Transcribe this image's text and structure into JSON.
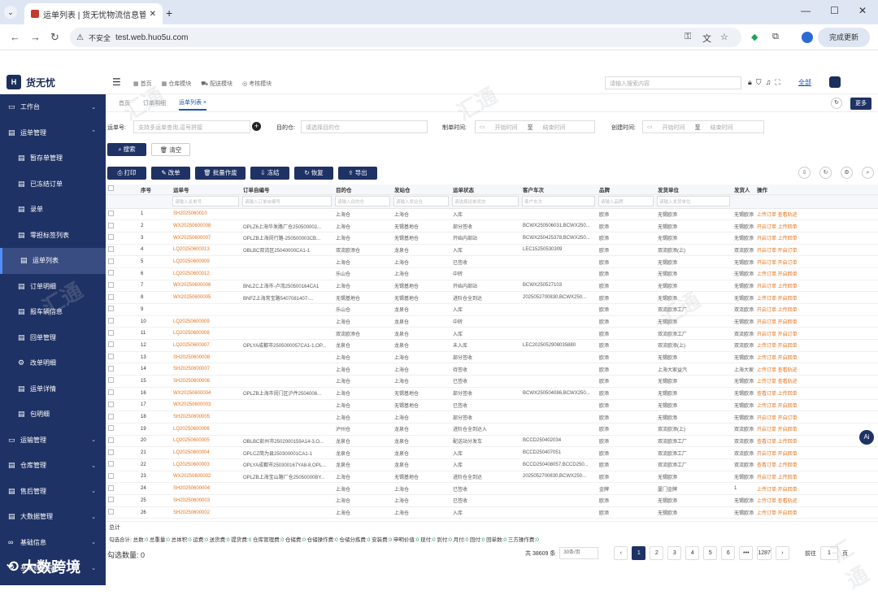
{
  "browser": {
    "tab_title": "运单列表 | 货无忧物流信息管理系统",
    "new_tab": "+",
    "security": "不安全",
    "url": "test.web.huo5u.com",
    "update_label": "完成更新"
  },
  "app": {
    "brand": "货无忧",
    "top_menu": [
      "首页",
      "仓库模块",
      "配送模块",
      "考核模块"
    ],
    "search_placeholder": "请输入搜索内容",
    "all_label": "全部"
  },
  "sidebar": {
    "items": [
      {
        "label": "工作台",
        "type": "group",
        "icon": "monitor-icon"
      },
      {
        "label": "运单管理",
        "type": "group",
        "icon": "doc-icon"
      },
      {
        "label": "暂存单管理",
        "type": "sub",
        "icon": "doc-icon"
      },
      {
        "label": "已冻结订单",
        "type": "sub",
        "icon": "doc-icon"
      },
      {
        "label": "录单",
        "type": "sub",
        "icon": "doc-icon"
      },
      {
        "label": "零担标签列表",
        "type": "sub",
        "icon": "doc-icon"
      },
      {
        "label": "运单列表",
        "type": "sub",
        "icon": "doc-icon",
        "active": true
      },
      {
        "label": "订单明细",
        "type": "sub",
        "icon": "doc-icon"
      },
      {
        "label": "报车辆信息",
        "type": "sub",
        "icon": "doc-icon"
      },
      {
        "label": "回单管理",
        "type": "sub",
        "icon": "doc-icon"
      },
      {
        "label": "改单明细",
        "type": "sub",
        "icon": "gear-icon"
      },
      {
        "label": "运单详情",
        "type": "sub",
        "icon": "doc-icon"
      },
      {
        "label": "包明细",
        "type": "sub",
        "icon": "doc-icon"
      },
      {
        "label": "运输管理",
        "type": "group",
        "icon": "monitor-icon"
      },
      {
        "label": "仓库管理",
        "type": "group",
        "icon": "doc-icon"
      },
      {
        "label": "售后管理",
        "type": "group",
        "icon": "doc-icon"
      },
      {
        "label": "大数据管理",
        "type": "group",
        "icon": "doc-icon"
      },
      {
        "label": "基础信息",
        "type": "group",
        "icon": "glasses-icon"
      },
      {
        "label": "基础数据信息",
        "type": "group",
        "icon": "gear-icon"
      }
    ],
    "footer_brand": "大数跨境"
  },
  "page_tabs": [
    "首页",
    "订单明细",
    "运单列表"
  ],
  "refresh_icon": "↻",
  "more_label": "更多",
  "filters": {
    "waybill_label": "运单号:",
    "waybill_placeholder": "支持多运单查询,逗号拼接",
    "dest_label": "目的仓:",
    "dest_placeholder": "请选择目的仓",
    "create_label": "制单时间:",
    "start_placeholder": "开始时间",
    "to": "至",
    "end_placeholder": "结束时间",
    "created_label": "创建时间:"
  },
  "actions": {
    "search": "搜索",
    "clear": "清空",
    "print": "打印",
    "edit": "改单",
    "batch": "批量作废",
    "freeze": "冻结",
    "restore": "恢复",
    "export": "导出"
  },
  "table": {
    "headers": [
      "",
      "序号",
      "运单号",
      "订单自编号",
      "目的仓",
      "发站仓",
      "运单状态",
      "客户车次",
      "品牌",
      "发货单位",
      "发货人",
      "操作"
    ],
    "filters": [
      "",
      "",
      "请输入关单号",
      "请输入订单自编号",
      "请输入目的仓",
      "请输入发站仓",
      "请选择运单状态",
      "客户车次",
      "请输入品牌",
      "请输入发货单位",
      "",
      ""
    ],
    "rows": [
      [
        "1",
        "SH2025060010",
        "",
        "上海仓",
        "上海仓",
        "入库",
        "",
        "欧添",
        "无锡欧添",
        "无锡欧添",
        "上传订单  查看轨迹"
      ],
      [
        "2",
        "WX20250600008",
        "OPLZ6上海华发路厂仓250500002...",
        "上海仓",
        "无锡基地仓",
        "部分签收",
        "BCWX250506031,BCWX250...",
        "欧添",
        "无锡欧添",
        "无锡欧添",
        "开启订单  上传回单"
      ],
      [
        "3",
        "WX20250600007",
        "OPLZB上海闵行路-250500003CB...",
        "上海仓",
        "无锡基地仓",
        "开始内部站",
        "BCWX250425378,BCWX250...",
        "欧添",
        "无锡欧添",
        "无锡欧添",
        "开启订单  上传回单"
      ],
      [
        "4",
        "LQ20250600013",
        "OBLBC双流区25040000CA1-1",
        "双流欧添仓",
        "龙泉仓",
        "入库",
        "LEC15250530309",
        "欧添",
        "双流欧添(上)",
        "双流欧添",
        "开启订单  开启订单"
      ],
      [
        "5",
        "LQ20250600009",
        "",
        "上海仓",
        "上海仓",
        "已签收",
        "",
        "欧添",
        "无锡欧添",
        "无锡欧添",
        "开启订单  开启订单"
      ],
      [
        "6",
        "LQ20250600012",
        "",
        "乐山仓",
        "上海仓",
        "中转",
        "",
        "欧添",
        "无锡欧添",
        "无锡欧添",
        "上传订单  开启回单"
      ],
      [
        "7",
        "WX20250600006",
        "BNLZC上海市-卢湾250500164CA1",
        "上海仓",
        "无锡基地仓",
        "开始内部站",
        "BCWX250527103",
        "欧添",
        "无锡欧添",
        "无锡欧添",
        "开启订单  上传回单"
      ],
      [
        "8",
        "WX20250600005",
        "BNFZ上海常宝路5407081407-...",
        "无锡基地仓",
        "无锡基地仓",
        "进阶仓全到达",
        "2025052700830,BCWX250...",
        "欧添",
        "无锡欧添",
        "无锡欧添",
        "上传订单  开启回单"
      ],
      [
        "9",
        "",
        "",
        "乐山仓",
        "龙泉仓",
        "入库",
        "",
        "欧添",
        "双流欧添工厂",
        "双流欧添",
        "开启订单  上传回单"
      ],
      [
        "10",
        "LQ20250600009",
        "",
        "上海仓",
        "龙泉仓",
        "中转",
        "",
        "欧添",
        "无锡欧添",
        "无锡欧添",
        "开启订单  开启回单"
      ],
      [
        "11",
        "LQ20250600008",
        "",
        "双流欧添仓",
        "龙泉仓",
        "入库",
        "",
        "欧添",
        "双流欧添工厂",
        "双流欧添",
        "开启订单  开启订单"
      ],
      [
        "12",
        "LQ20250600007",
        "OPLYA成都市2505000057CA1-1,OP...",
        "龙泉仓",
        "龙泉仓",
        "未入库",
        "LEC2025052908035880",
        "欧添",
        "双流欧添(上)",
        "双流欧添",
        "上传订单  开启回单"
      ],
      [
        "13",
        "SH20250600008",
        "",
        "上海仓",
        "上海仓",
        "部分签收",
        "",
        "欧添",
        "无锡欧添",
        "无锡欧添",
        "上传订单  开启回单"
      ],
      [
        "14",
        "SH20250600007",
        "",
        "上海仓",
        "上海仓",
        "待签收",
        "",
        "欧添",
        "上海大家益汽",
        "上海大家益汽",
        "上传订单  查看轨迹"
      ],
      [
        "15",
        "SH20250600006",
        "",
        "上海仓",
        "上海仓",
        "已签收",
        "",
        "欧添",
        "无锡欧添",
        "无锡欧添",
        "上传订单  查看轨迹"
      ],
      [
        "16",
        "WX20250600004",
        "OPLZB上海市闵门区沪件2504006...",
        "上海仓",
        "无锡基地仓",
        "部分签收",
        "BCWX250504086,BCWX250...",
        "欧添",
        "无锡欧添",
        "无锡欧添",
        "查看订单  上传回单"
      ],
      [
        "17",
        "WX20250600003",
        "",
        "上海仓",
        "无锡基地仓",
        "已签收",
        "",
        "欧添",
        "无锡欧添",
        "无锡欧添",
        "上传订单  开启回单"
      ],
      [
        "18",
        "SH20250600005",
        "",
        "上海仓",
        "上海仓",
        "部分签收",
        "",
        "欧添",
        "无锡欧添",
        "无锡欧添",
        "开启订单  开启订单"
      ],
      [
        "19",
        "LQ20250600006",
        "",
        "泸州仓",
        "龙泉仓",
        "进阶仓全到达入",
        "",
        "欧添",
        "双流欧添(上)",
        "双流欧添",
        "开启订单  开启回单"
      ],
      [
        "20",
        "LQ20250600005",
        "OBLBC彭州市2502000159A14-3,O...",
        "龙泉仓",
        "龙泉仓",
        "配送站分发车",
        "BCCD250402034",
        "欧添",
        "双流欧添工厂",
        "双流欧添",
        "查看订单  上传回单"
      ],
      [
        "21",
        "LQ20250600004",
        "OPLCZ简为县250300001CA1-1",
        "龙泉仓",
        "龙泉仓",
        "入库",
        "BCCD250407051",
        "欧添",
        "双流欧添工厂",
        "双流欧添",
        "开启订单  开启回单"
      ],
      [
        "22",
        "LQ20250600003",
        "OPLYA成都市250300167YA8-8,OPL...",
        "龙泉仓",
        "龙泉仓",
        "入库",
        "BCCD250408057,BCCD250...",
        "欧添",
        "双流欧添工厂",
        "双流欧添",
        "查看订单  上传回单"
      ],
      [
        "23",
        "WX20250600002",
        "OPLZB上海宝山路厂仓25050000BY...",
        "上海仓",
        "无锡基地仓",
        "进阶仓全到达",
        "2025052700830,BCWX250...",
        "欧添",
        "无锡欧添",
        "无锡欧添",
        "开启订单  上传回单"
      ],
      [
        "24",
        "SH20250600004",
        "",
        "上海仓",
        "上海仓",
        "已签收",
        "",
        "金牌",
        "厦门金牌",
        "1",
        "上传订单  开启回单"
      ],
      [
        "25",
        "SH20250600003",
        "",
        "上海仓",
        "上海仓",
        "已签收",
        "",
        "欧添",
        "无锡欧添",
        "无锡欧添",
        "上传订单  查看轨迹"
      ],
      [
        "26",
        "SH20250600002",
        "",
        "上海仓",
        "上海仓",
        "入库",
        "",
        "欧添",
        "无锡欧添",
        "无锡欧添",
        "上传订单  开启回单"
      ]
    ],
    "total_label": "总计"
  },
  "summary": [
    [
      "勾选合计:",
      ""
    ],
    [
      "总数:",
      "0"
    ],
    [
      "总重量:",
      "0"
    ],
    [
      "总体积:",
      "0"
    ],
    [
      "运费:",
      "0"
    ],
    [
      "送货费:",
      "0"
    ],
    [
      "提货费:",
      "0"
    ],
    [
      "仓库管理费:",
      "0"
    ],
    [
      "仓储费:",
      "0"
    ],
    [
      "仓储操作费:",
      "0"
    ],
    [
      "仓储分拣费:",
      "0"
    ],
    [
      "安装费:",
      "0"
    ],
    [
      "申明价值:",
      "0"
    ],
    [
      "现付:",
      "0"
    ],
    [
      "到付:",
      "0"
    ],
    [
      "月付:",
      "0"
    ],
    [
      "回付:",
      "0"
    ],
    [
      "回单数:",
      "0"
    ],
    [
      "三方操作费:",
      "0"
    ]
  ],
  "selected_count": "勾选数量: 0",
  "pagination": {
    "total": "共 38609 条",
    "per_page": "30条/页",
    "pages": [
      "1",
      "2",
      "3",
      "4",
      "5",
      "6",
      "•••",
      "1287"
    ],
    "current": "1",
    "goto_label": "前往",
    "goto_value": "1",
    "page_unit": "页"
  },
  "watermark_text": "汇通",
  "ai_label": "Ai"
}
